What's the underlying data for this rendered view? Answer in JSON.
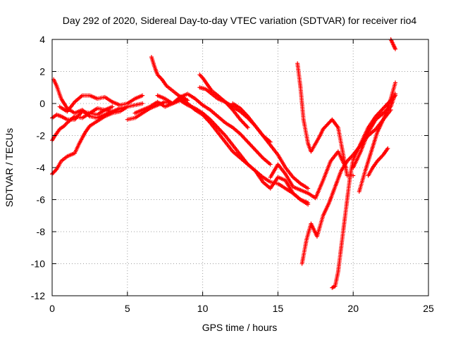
{
  "chart_data": {
    "type": "scatter",
    "title": "Day 292 of 2020, Sidereal Day-to-day VTEC variation (SDTVAR) for receiver rio4",
    "xlabel": "GPS time / hours",
    "ylabel": "SDTVAR / TECUs",
    "xlim": [
      0,
      25
    ],
    "ylim": [
      -12,
      4
    ],
    "xticks": [
      0,
      5,
      10,
      15,
      20,
      25
    ],
    "yticks": [
      -12,
      -10,
      -8,
      -6,
      -4,
      -2,
      0,
      2,
      4
    ],
    "grid": true,
    "legend": "none",
    "marker": "plus",
    "marker_color": "#ff0000",
    "series": [
      {
        "x": [
          0.0,
          0.3,
          0.6,
          1.0,
          1.5,
          2.0,
          2.5,
          3.0,
          3.5,
          4.0
        ],
        "y": [
          -0.9,
          -0.7,
          -0.8,
          -1.0,
          -1.0,
          -0.5,
          -0.6,
          -0.3,
          -0.4,
          -0.2
        ]
      },
      {
        "x": [
          0.0,
          0.2,
          0.5,
          0.8,
          1.0,
          1.5,
          2.0,
          2.5,
          3.0,
          3.5,
          4.0,
          4.5,
          5.0
        ],
        "y": [
          -2.3,
          -2.0,
          -1.6,
          -1.4,
          -1.2,
          -0.8,
          -0.9,
          -0.6,
          -0.7,
          -0.4,
          -0.5,
          -0.3,
          -0.2
        ]
      },
      {
        "x": [
          0.0,
          0.3,
          0.6,
          1.0,
          1.5,
          1.8,
          2.2,
          2.5,
          3.0,
          3.5,
          4.0,
          4.5,
          5.0,
          5.5,
          6.0
        ],
        "y": [
          -4.4,
          -4.1,
          -3.6,
          -3.3,
          -3.1,
          -2.5,
          -1.8,
          -1.4,
          -1.1,
          -0.8,
          -0.6,
          -0.5,
          -0.2,
          -0.1,
          0.0
        ]
      },
      {
        "x": [
          0.1,
          0.3,
          0.6,
          1.0,
          1.5,
          2.0,
          2.5,
          3.0,
          3.5,
          4.0
        ],
        "y": [
          1.5,
          1.1,
          0.3,
          -0.3,
          -0.6,
          -0.4,
          -0.8,
          -0.9,
          -0.7,
          -0.5
        ]
      },
      {
        "x": [
          0.5,
          1.0,
          1.5,
          2.0,
          2.5,
          3.0,
          3.5,
          4.0,
          4.5,
          5.0,
          5.5,
          6.0
        ],
        "y": [
          -0.2,
          -0.5,
          0.1,
          0.5,
          0.5,
          0.3,
          0.4,
          0.1,
          -0.1,
          0.0,
          0.3,
          0.5
        ]
      },
      {
        "x": [
          5.0,
          5.5,
          6.0,
          6.5,
          7.0,
          7.5,
          8.0,
          8.5,
          9.0,
          9.5,
          10.0,
          10.5,
          11.0,
          11.5,
          12.0,
          12.5,
          13.0,
          13.5,
          14.0,
          14.5,
          15.0,
          15.5,
          16.0,
          16.5,
          17.0
        ],
        "y": [
          -1.0,
          -0.9,
          -0.6,
          -0.3,
          -0.1,
          0.1,
          0.0,
          0.2,
          -0.1,
          -0.3,
          -0.6,
          -1.0,
          -1.5,
          -2.0,
          -2.6,
          -3.2,
          -3.8,
          -4.2,
          -4.6,
          -4.9,
          -5.0,
          -5.3,
          -5.6,
          -6.0,
          -6.2
        ]
      },
      {
        "x": [
          5.5,
          6.0,
          6.5,
          7.0,
          7.5,
          8.0,
          8.5,
          9.0,
          9.5,
          10.0,
          10.5,
          11.0,
          11.5,
          12.0,
          12.5,
          13.0,
          13.5,
          14.0,
          14.5,
          15.0,
          15.5,
          16.0,
          16.5,
          17.0
        ],
        "y": [
          -0.6,
          -0.4,
          -0.2,
          0.1,
          -0.2,
          0.0,
          0.3,
          0.0,
          -0.4,
          -0.7,
          -1.2,
          -1.8,
          -2.4,
          -3.0,
          -3.4,
          -3.8,
          -4.2,
          -4.9,
          -5.3,
          -4.6,
          -4.8,
          -5.6,
          -6.0,
          -6.3
        ]
      },
      {
        "x": [
          6.6,
          6.8,
          7.0,
          7.3,
          7.6,
          8.0,
          8.4,
          8.8,
          9.0
        ],
        "y": [
          2.9,
          2.3,
          1.8,
          1.5,
          1.1,
          0.8,
          0.5,
          0.3,
          0.2
        ]
      },
      {
        "x": [
          7.0,
          7.5,
          8.0,
          8.5,
          9.0,
          9.5,
          10.0,
          10.5,
          11.0,
          11.5,
          12.0,
          12.5,
          13.0,
          13.5,
          14.0,
          14.5
        ],
        "y": [
          0.5,
          0.3,
          0.0,
          0.4,
          0.6,
          0.3,
          -0.1,
          -0.4,
          -0.8,
          -1.2,
          -1.5,
          -1.9,
          -2.4,
          -2.9,
          -3.4,
          -3.8
        ]
      },
      {
        "x": [
          9.8,
          10.0,
          10.3,
          10.6,
          11.0,
          11.5,
          12.0,
          12.5,
          13.0
        ],
        "y": [
          1.8,
          1.6,
          1.2,
          0.8,
          0.5,
          0.1,
          -0.4,
          -1.0,
          -1.5
        ]
      },
      {
        "x": [
          9.8,
          10.2,
          10.6,
          11.0,
          11.5,
          12.0,
          12.5,
          13.0,
          13.5,
          14.0,
          14.5
        ],
        "y": [
          1.0,
          0.9,
          0.6,
          0.3,
          0.1,
          -0.2,
          -0.5,
          -0.9,
          -1.4,
          -2.0,
          -2.4
        ]
      },
      {
        "x": [
          12.0,
          12.5,
          13.0,
          13.5,
          14.0,
          14.5,
          15.0,
          15.5,
          16.0,
          16.5,
          17.0
        ],
        "y": [
          0.0,
          -0.3,
          -0.8,
          -1.4,
          -2.0,
          -2.6,
          -3.2,
          -4.0,
          -4.6,
          -5.0,
          -5.3
        ]
      },
      {
        "x": [
          14.5,
          15.0,
          15.5,
          16.0,
          16.5,
          17.0,
          17.5,
          18.0,
          18.5,
          19.0,
          19.5
        ],
        "y": [
          -4.6,
          -3.8,
          -4.4,
          -5.2,
          -5.4,
          -5.6,
          -5.9,
          -4.8,
          -3.6,
          -3.0,
          -4.0
        ]
      },
      {
        "x": [
          16.3,
          16.5,
          16.7,
          17.0,
          17.2,
          17.5,
          17.8,
          18.0,
          18.3,
          18.6,
          19.0,
          19.3,
          19.6,
          20.0
        ],
        "y": [
          2.5,
          1.0,
          -1.0,
          -2.5,
          -3.0,
          -2.5,
          -2.0,
          -1.6,
          -1.3,
          -1.0,
          -1.5,
          -3.0,
          -4.5,
          -4.5
        ]
      },
      {
        "x": [
          16.6,
          16.9,
          17.2,
          17.6,
          18.0,
          18.4,
          18.8,
          19.2,
          19.6,
          20.0,
          20.5,
          21.0,
          21.5,
          22.0,
          22.5
        ],
        "y": [
          -10.0,
          -8.5,
          -7.5,
          -8.3,
          -7.0,
          -6.2,
          -5.2,
          -4.2,
          -3.6,
          -3.2,
          -2.6,
          -2.0,
          -1.6,
          -1.0,
          -0.4
        ]
      },
      {
        "x": [
          18.6,
          18.8,
          19.0,
          19.2,
          19.4,
          19.6,
          19.8,
          20.0,
          20.5,
          21.0,
          21.5,
          22.0,
          22.5,
          22.8
        ],
        "y": [
          -11.5,
          -11.4,
          -10.5,
          -9.0,
          -7.5,
          -6.0,
          -4.5,
          -3.5,
          -2.5,
          -1.5,
          -0.8,
          -0.3,
          0.2,
          0.5
        ]
      },
      {
        "x": [
          20.0,
          20.5,
          21.0,
          21.5,
          22.0,
          22.5,
          22.8
        ],
        "y": [
          -4.0,
          -3.0,
          -1.8,
          -1.0,
          -0.6,
          -0.2,
          0.6
        ]
      },
      {
        "x": [
          20.4,
          20.8,
          21.2,
          21.6,
          22.0,
          22.5,
          22.8
        ],
        "y": [
          -5.5,
          -4.2,
          -3.0,
          -1.8,
          -1.0,
          0.3,
          1.3
        ]
      },
      {
        "x": [
          21.0,
          21.3,
          21.6,
          22.0,
          22.3
        ],
        "y": [
          -4.5,
          -4.0,
          -3.6,
          -3.2,
          -2.8
        ]
      },
      {
        "x": [
          22.5,
          22.6,
          22.7,
          22.8
        ],
        "y": [
          4.0,
          3.8,
          3.6,
          3.4
        ]
      }
    ]
  }
}
